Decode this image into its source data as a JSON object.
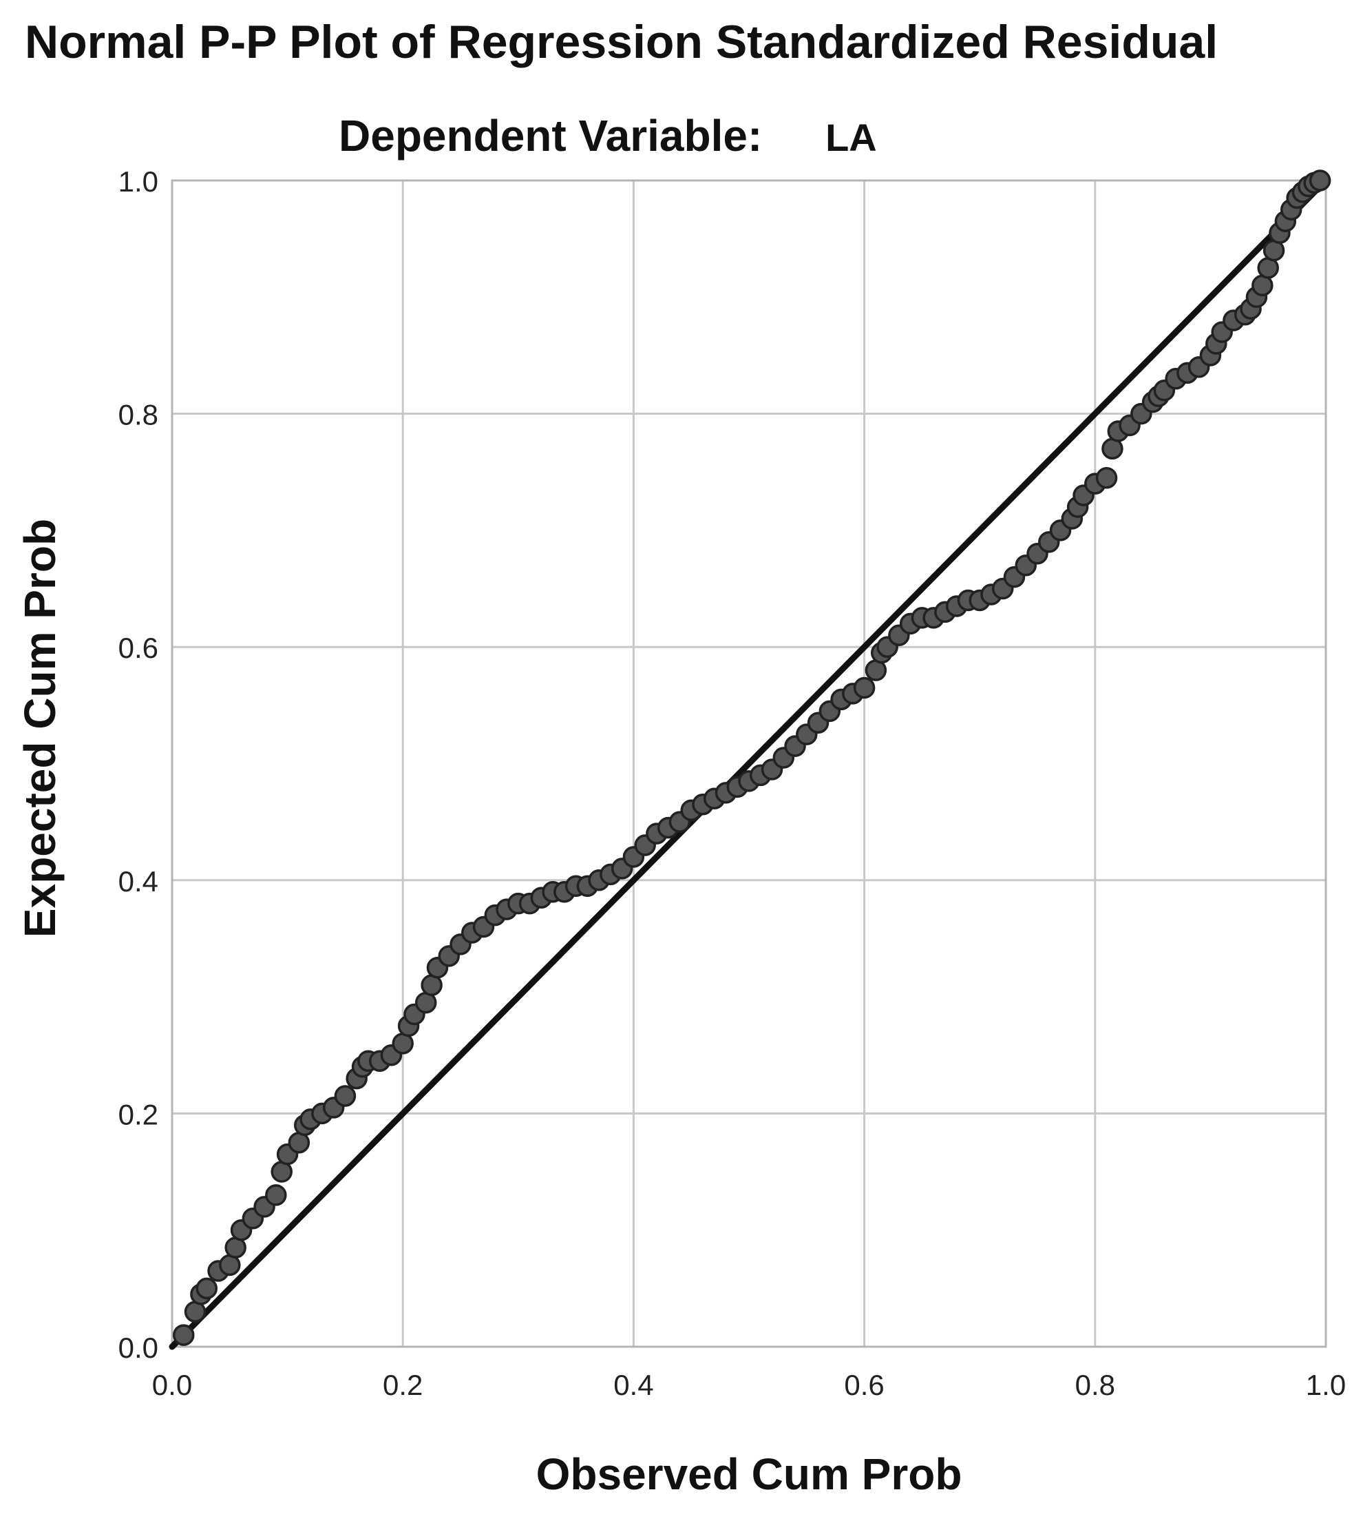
{
  "chart_data": {
    "type": "scatter",
    "title": "Normal P-P Plot of Regression Standardized Residual",
    "subtitle_label": "Dependent Variable:",
    "subtitle_value": "LA",
    "xlabel": "Observed Cum Prob",
    "ylabel": "Expected Cum Prob",
    "xlim": [
      0.0,
      1.0
    ],
    "ylim": [
      0.0,
      1.0
    ],
    "xticks": [
      "0.0",
      "0.2",
      "0.4",
      "0.6",
      "0.8",
      "1.0"
    ],
    "yticks": [
      "0.0",
      "0.2",
      "0.4",
      "0.6",
      "0.8",
      "1.0"
    ],
    "grid": true,
    "reference_line": [
      [
        0.0,
        0.0
      ],
      [
        1.0,
        1.0
      ]
    ],
    "marker_color": "#555555",
    "series": [
      {
        "points": [
          [
            0.01,
            0.01
          ],
          [
            0.02,
            0.03
          ],
          [
            0.025,
            0.045
          ],
          [
            0.03,
            0.05
          ],
          [
            0.04,
            0.065
          ],
          [
            0.05,
            0.07
          ],
          [
            0.055,
            0.085
          ],
          [
            0.06,
            0.1
          ],
          [
            0.07,
            0.11
          ],
          [
            0.08,
            0.12
          ],
          [
            0.09,
            0.13
          ],
          [
            0.095,
            0.15
          ],
          [
            0.1,
            0.165
          ],
          [
            0.11,
            0.175
          ],
          [
            0.115,
            0.19
          ],
          [
            0.12,
            0.195
          ],
          [
            0.13,
            0.2
          ],
          [
            0.14,
            0.205
          ],
          [
            0.15,
            0.215
          ],
          [
            0.16,
            0.23
          ],
          [
            0.165,
            0.24
          ],
          [
            0.17,
            0.245
          ],
          [
            0.18,
            0.245
          ],
          [
            0.19,
            0.25
          ],
          [
            0.2,
            0.26
          ],
          [
            0.205,
            0.275
          ],
          [
            0.21,
            0.285
          ],
          [
            0.22,
            0.295
          ],
          [
            0.225,
            0.31
          ],
          [
            0.23,
            0.325
          ],
          [
            0.24,
            0.335
          ],
          [
            0.25,
            0.345
          ],
          [
            0.26,
            0.355
          ],
          [
            0.27,
            0.36
          ],
          [
            0.28,
            0.37
          ],
          [
            0.29,
            0.375
          ],
          [
            0.3,
            0.38
          ],
          [
            0.31,
            0.38
          ],
          [
            0.32,
            0.385
          ],
          [
            0.33,
            0.39
          ],
          [
            0.34,
            0.39
          ],
          [
            0.35,
            0.395
          ],
          [
            0.36,
            0.395
          ],
          [
            0.37,
            0.4
          ],
          [
            0.38,
            0.405
          ],
          [
            0.39,
            0.41
          ],
          [
            0.4,
            0.42
          ],
          [
            0.41,
            0.43
          ],
          [
            0.42,
            0.44
          ],
          [
            0.43,
            0.445
          ],
          [
            0.44,
            0.45
          ],
          [
            0.45,
            0.46
          ],
          [
            0.46,
            0.465
          ],
          [
            0.47,
            0.47
          ],
          [
            0.48,
            0.475
          ],
          [
            0.49,
            0.48
          ],
          [
            0.5,
            0.485
          ],
          [
            0.51,
            0.49
          ],
          [
            0.52,
            0.495
          ],
          [
            0.53,
            0.505
          ],
          [
            0.54,
            0.515
          ],
          [
            0.55,
            0.525
          ],
          [
            0.56,
            0.535
          ],
          [
            0.57,
            0.545
          ],
          [
            0.58,
            0.555
          ],
          [
            0.59,
            0.56
          ],
          [
            0.6,
            0.565
          ],
          [
            0.61,
            0.58
          ],
          [
            0.615,
            0.595
          ],
          [
            0.62,
            0.6
          ],
          [
            0.63,
            0.61
          ],
          [
            0.64,
            0.62
          ],
          [
            0.65,
            0.625
          ],
          [
            0.66,
            0.625
          ],
          [
            0.67,
            0.63
          ],
          [
            0.68,
            0.635
          ],
          [
            0.69,
            0.64
          ],
          [
            0.7,
            0.64
          ],
          [
            0.71,
            0.645
          ],
          [
            0.72,
            0.65
          ],
          [
            0.73,
            0.66
          ],
          [
            0.74,
            0.67
          ],
          [
            0.75,
            0.68
          ],
          [
            0.76,
            0.69
          ],
          [
            0.77,
            0.7
          ],
          [
            0.78,
            0.71
          ],
          [
            0.785,
            0.72
          ],
          [
            0.79,
            0.73
          ],
          [
            0.8,
            0.74
          ],
          [
            0.81,
            0.745
          ],
          [
            0.815,
            0.77
          ],
          [
            0.82,
            0.785
          ],
          [
            0.83,
            0.79
          ],
          [
            0.84,
            0.8
          ],
          [
            0.85,
            0.81
          ],
          [
            0.855,
            0.815
          ],
          [
            0.86,
            0.82
          ],
          [
            0.87,
            0.83
          ],
          [
            0.88,
            0.835
          ],
          [
            0.89,
            0.84
          ],
          [
            0.9,
            0.85
          ],
          [
            0.905,
            0.86
          ],
          [
            0.91,
            0.87
          ],
          [
            0.92,
            0.88
          ],
          [
            0.93,
            0.885
          ],
          [
            0.935,
            0.89
          ],
          [
            0.94,
            0.9
          ],
          [
            0.945,
            0.91
          ],
          [
            0.95,
            0.925
          ],
          [
            0.955,
            0.94
          ],
          [
            0.96,
            0.955
          ],
          [
            0.965,
            0.965
          ],
          [
            0.97,
            0.975
          ],
          [
            0.975,
            0.985
          ],
          [
            0.98,
            0.99
          ],
          [
            0.985,
            0.995
          ],
          [
            0.99,
            0.998
          ],
          [
            0.995,
            1.0
          ]
        ]
      }
    ]
  }
}
